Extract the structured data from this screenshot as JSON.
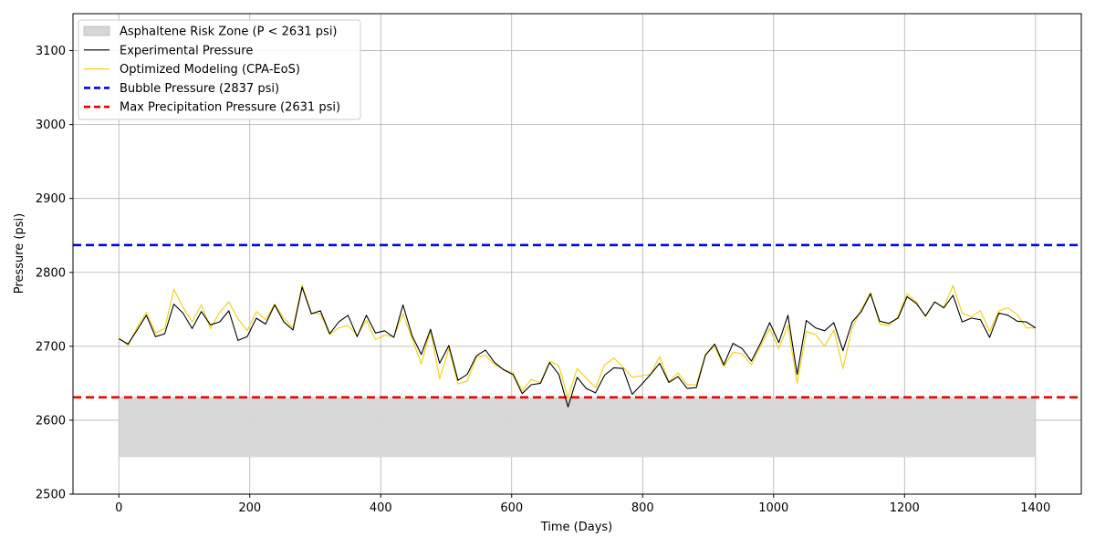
{
  "chart_data": {
    "type": "line",
    "xlabel": "Time (Days)",
    "ylabel": "Pressure (psi)",
    "xlim": [
      -70,
      1470
    ],
    "ylim": [
      2500,
      3150
    ],
    "x_ticks": [
      0,
      200,
      400,
      600,
      800,
      1000,
      1200,
      1400
    ],
    "y_ticks": [
      2500,
      2600,
      2700,
      2800,
      2900,
      3000,
      3100
    ],
    "x_tick_labels": [
      "0",
      "200",
      "400",
      "600",
      "800",
      "1000",
      "1200",
      "1400"
    ],
    "y_tick_labels": [
      "2500",
      "2600",
      "2700",
      "2800",
      "2900",
      "3000",
      "3100"
    ],
    "grid": true,
    "legend_position": "top-left",
    "risk_zone": {
      "name": "Asphaltene Risk Zone (P < 2631 psi)",
      "x_range": [
        0,
        1400
      ],
      "y_range": [
        2550,
        2631
      ],
      "color": "#d6d6d6"
    },
    "hlines": [
      {
        "name": "Bubble Pressure (2837 psi)",
        "y": 2837,
        "color": "#0000ee"
      },
      {
        "name": "Max Precipitation Pressure (2631 psi)",
        "y": 2631,
        "color": "#ee0000"
      }
    ],
    "x": [
      0,
      14,
      28,
      42,
      56,
      70,
      84,
      98,
      112,
      126,
      140,
      154,
      168,
      182,
      196,
      210,
      224,
      238,
      252,
      266,
      280,
      294,
      308,
      322,
      336,
      350,
      364,
      378,
      392,
      406,
      420,
      434,
      448,
      462,
      476,
      490,
      504,
      518,
      532,
      546,
      560,
      574,
      588,
      602,
      616,
      630,
      644,
      658,
      672,
      686,
      700,
      714,
      728,
      742,
      756,
      770,
      784,
      798,
      812,
      826,
      840,
      854,
      868,
      882,
      896,
      910,
      924,
      938,
      952,
      966,
      980,
      994,
      1008,
      1022,
      1036,
      1050,
      1064,
      1078,
      1092,
      1106,
      1120,
      1134,
      1148,
      1162,
      1176,
      1190,
      1204,
      1218,
      1232,
      1246,
      1260,
      1274,
      1288,
      1302,
      1316,
      1330,
      1344,
      1358,
      1372,
      1386,
      1400
    ],
    "series": [
      {
        "name": "Experimental Pressure",
        "color": "#000000",
        "values": [
          2710,
          2703,
          2722,
          2742,
          2713,
          2717,
          2757,
          2745,
          2724,
          2747,
          2729,
          2733,
          2748,
          2708,
          2713,
          2738,
          2730,
          2756,
          2733,
          2722,
          2780,
          2744,
          2748,
          2717,
          2733,
          2742,
          2713,
          2742,
          2718,
          2721,
          2712,
          2756,
          2714,
          2689,
          2723,
          2677,
          2701,
          2654,
          2662,
          2687,
          2695,
          2678,
          2668,
          2662,
          2636,
          2648,
          2650,
          2678,
          2662,
          2618,
          2658,
          2643,
          2637,
          2661,
          2671,
          2670,
          2635,
          2648,
          2662,
          2677,
          2651,
          2659,
          2643,
          2644,
          2688,
          2703,
          2675,
          2704,
          2697,
          2680,
          2704,
          2732,
          2705,
          2742,
          2662,
          2735,
          2725,
          2721,
          2732,
          2694,
          2733,
          2747,
          2771,
          2734,
          2731,
          2738,
          2767,
          2758,
          2741,
          2760,
          2752,
          2769,
          2733,
          2738,
          2736,
          2712,
          2745,
          2742,
          2734,
          2733,
          2725
        ]
      },
      {
        "name": "Optimized Modeling (CPA-EoS)",
        "color": "#f2d21a",
        "values": [
          2712,
          2701,
          2726,
          2746,
          2718,
          2724,
          2777,
          2753,
          2733,
          2756,
          2724,
          2746,
          2760,
          2737,
          2721,
          2747,
          2736,
          2757,
          2738,
          2725,
          2783,
          2745,
          2744,
          2716,
          2725,
          2728,
          2715,
          2735,
          2709,
          2715,
          2713,
          2744,
          2710,
          2676,
          2722,
          2656,
          2697,
          2649,
          2653,
          2685,
          2688,
          2675,
          2669,
          2664,
          2640,
          2655,
          2651,
          2680,
          2674,
          2630,
          2670,
          2657,
          2644,
          2675,
          2684,
          2672,
          2658,
          2660,
          2662,
          2686,
          2652,
          2664,
          2648,
          2648,
          2689,
          2700,
          2672,
          2692,
          2690,
          2675,
          2700,
          2724,
          2697,
          2728,
          2650,
          2720,
          2716,
          2700,
          2722,
          2670,
          2725,
          2750,
          2773,
          2730,
          2728,
          2740,
          2771,
          2760,
          2740,
          2760,
          2753,
          2782,
          2745,
          2740,
          2748,
          2720,
          2748,
          2752,
          2743,
          2725,
          2725
        ]
      }
    ]
  }
}
